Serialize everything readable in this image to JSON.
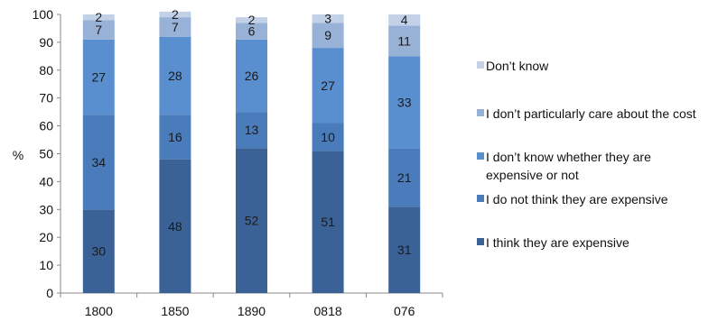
{
  "chart_data": {
    "type": "bar",
    "stacked": true,
    "ylabel": "%",
    "ylim": [
      0,
      100
    ],
    "yticks": [
      0,
      10,
      20,
      30,
      40,
      50,
      60,
      70,
      80,
      90,
      100
    ],
    "categories": [
      "1800",
      "1850",
      "1890",
      "0818",
      "076"
    ],
    "series": [
      {
        "name": "I think they are expensive",
        "values": [
          30,
          48,
          52,
          51,
          31
        ],
        "color": "#3B6296"
      },
      {
        "name": "I do not think they are expensive",
        "values": [
          34,
          16,
          13,
          10,
          21
        ],
        "color": "#4A7BBA"
      },
      {
        "name": "I don’t know whether they are expensive or not",
        "values": [
          27,
          28,
          26,
          27,
          33
        ],
        "color": "#5A8FCF"
      },
      {
        "name": "I don’t particularly care about the cost",
        "values": [
          7,
          7,
          6,
          9,
          11
        ],
        "color": "#98B1D6"
      },
      {
        "name": "Don’t know",
        "values": [
          2,
          2,
          2,
          3,
          4
        ],
        "color": "#C3D1E8"
      }
    ],
    "legend_position": "right",
    "grid": false
  }
}
